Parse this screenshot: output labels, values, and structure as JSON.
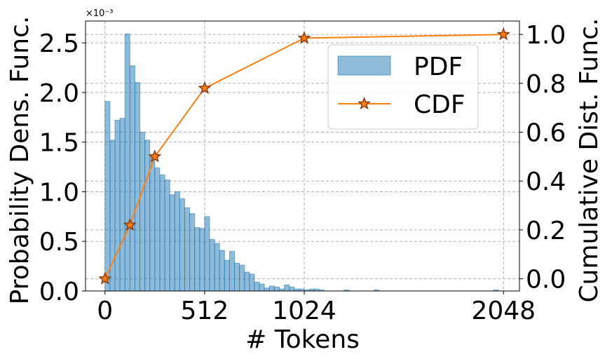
{
  "chart_data": {
    "type": "bar",
    "scale_note": "×10⁻³",
    "xlabel": "# Tokens",
    "ylabel_left": "Probability Dens. Func.",
    "ylabel_right": "Cumulative Dist. Func.",
    "xlim": [
      -100,
      2130
    ],
    "ylim_left": [
      0,
      2.72
    ],
    "ylim_right": [
      -0.05,
      1.055
    ],
    "x_ticks": [
      0,
      512,
      1024,
      2048
    ],
    "x_tick_labels": [
      "0",
      "512",
      "1024",
      "2048"
    ],
    "y_left_ticks": [
      0.0,
      0.5,
      1.0,
      1.5,
      2.0,
      2.5
    ],
    "y_left_tick_labels": [
      "0.0",
      "0.5",
      "1.0",
      "1.5",
      "2.0",
      "2.5"
    ],
    "y_right_ticks": [
      0.0,
      0.2,
      0.4,
      0.6,
      0.8,
      1.0
    ],
    "y_right_tick_labels": [
      "0.0",
      "0.2",
      "0.4",
      "0.6",
      "0.8",
      "1.0"
    ],
    "grid": true,
    "legend_position": "upper right",
    "pdf": {
      "name": "PDF",
      "color": "#1f77b4",
      "bin_width": 25.6,
      "bin_start": 0,
      "values": [
        1.91,
        1.52,
        1.72,
        1.74,
        2.59,
        2.27,
        2.1,
        1.6,
        1.52,
        1.36,
        1.24,
        1.17,
        1.12,
        0.97,
        1.0,
        0.93,
        0.84,
        0.78,
        0.64,
        0.63,
        0.75,
        0.52,
        0.48,
        0.41,
        0.31,
        0.4,
        0.28,
        0.26,
        0.19,
        0.17,
        0.09,
        0.07,
        0.03,
        0.05,
        0.04,
        0.02,
        0.06,
        0.04,
        0.02,
        0.02,
        0.01,
        0.02,
        0.02,
        0.01,
        0,
        0,
        0,
        0,
        0.01,
        0,
        0,
        0,
        0,
        0,
        0.01,
        0,
        0,
        0,
        0,
        0,
        0,
        0,
        0,
        0,
        0,
        0,
        0,
        0,
        0,
        0,
        0,
        0,
        0,
        0,
        0,
        0,
        0,
        0,
        0.01,
        0
      ]
    },
    "cdf": {
      "name": "CDF",
      "color": "#ff7f0e",
      "marker_edge": "#8b3a0e",
      "x": [
        0,
        128,
        256,
        512,
        1024,
        2048
      ],
      "y": [
        0.0,
        0.22,
        0.5,
        0.78,
        0.985,
        1.0
      ]
    }
  }
}
